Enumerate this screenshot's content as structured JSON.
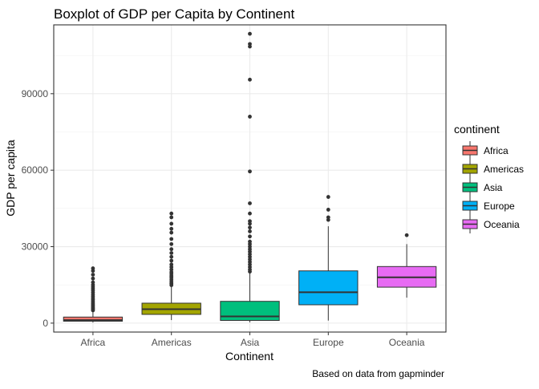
{
  "chart_data": {
    "type": "boxplot",
    "title": "Boxplot of GDP per Capita by Continent",
    "xlabel": "Continent",
    "ylabel": "GDP per capita",
    "caption": "Based on data from gapminder",
    "ylim": [
      -3500,
      117000
    ],
    "yticks": [
      0,
      30000,
      60000,
      90000
    ],
    "grid": true,
    "legend": {
      "title": "continent",
      "position": "right",
      "entries": [
        "Africa",
        "Americas",
        "Asia",
        "Europe",
        "Oceania"
      ]
    },
    "categories": [
      "Africa",
      "Americas",
      "Asia",
      "Europe",
      "Oceania"
    ],
    "series": [
      {
        "name": "Africa",
        "color": "#F8766D",
        "whisker_low": 240,
        "q1": 760,
        "median": 1190,
        "q3": 2380,
        "whisker_high": 4800,
        "outliers": [
          5000,
          5300,
          5700,
          6000,
          6500,
          7000,
          7500,
          8000,
          8600,
          9200,
          9800,
          10500,
          11200,
          12000,
          12800,
          13500,
          14200,
          15000,
          16000,
          17500,
          19000,
          20500,
          21500
        ]
      },
      {
        "name": "Americas",
        "color": "#A3A500",
        "whisker_low": 1200,
        "q1": 3430,
        "median": 5470,
        "q3": 7830,
        "whisker_high": 14300,
        "outliers": [
          14900,
          15500,
          16200,
          17000,
          17800,
          18500,
          19300,
          20000,
          21000,
          22000,
          23000,
          24500,
          26000,
          27500,
          29000,
          31000,
          33000,
          35500,
          37000,
          39000,
          41500,
          43000
        ]
      },
      {
        "name": "Asia",
        "color": "#00BF7D",
        "whisker_low": 330,
        "q1": 1060,
        "median": 2650,
        "q3": 8550,
        "whisker_high": 19500,
        "outliers": [
          20200,
          21000,
          22000,
          23000,
          24000,
          25000,
          26000,
          27000,
          28000,
          29000,
          30000,
          31000,
          32000,
          34000,
          36000,
          37500,
          39000,
          40000,
          43000,
          47000,
          59500,
          81000,
          95500,
          108500,
          109500,
          113500
        ]
      },
      {
        "name": "Europe",
        "color": "#00B0F6",
        "whisker_low": 1000,
        "q1": 7200,
        "median": 12100,
        "q3": 20500,
        "whisker_high": 38000,
        "outliers": [
          40500,
          41500,
          44500,
          49500
        ]
      },
      {
        "name": "Oceania",
        "color": "#E76BF3",
        "whisker_low": 10000,
        "q1": 14100,
        "median": 17980,
        "q3": 22200,
        "whisker_high": 31000,
        "outliers": [
          34500
        ]
      }
    ]
  }
}
